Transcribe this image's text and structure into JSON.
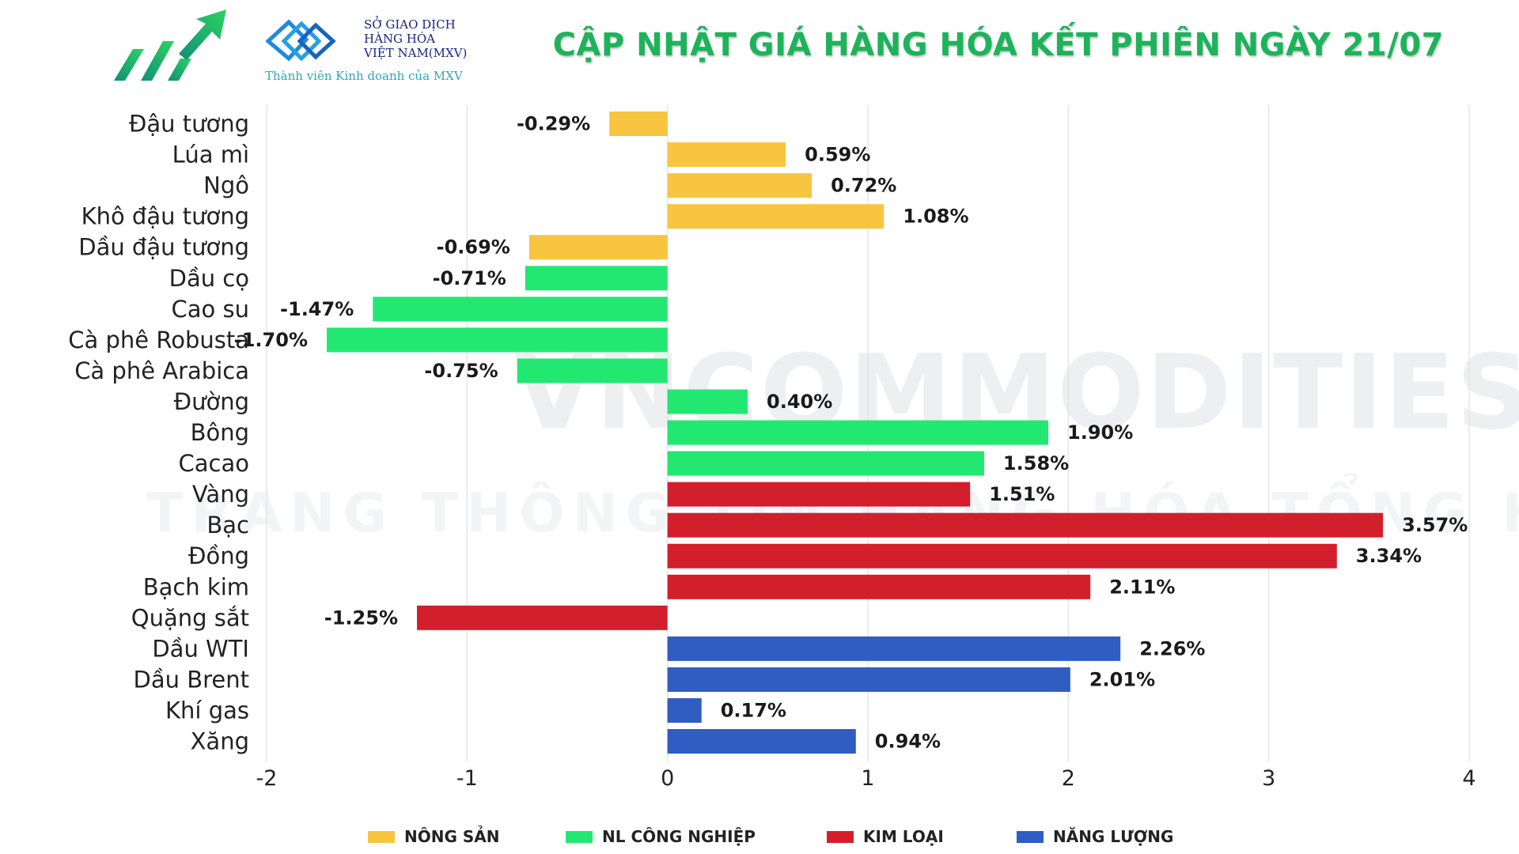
{
  "header": {
    "title": "CẬP NHẬT GIÁ HÀNG HÓA KẾT PHIÊN NGÀY 21/07",
    "mxv_line1": "SỞ GIAO DỊCH",
    "mxv_line2": "HÀNG HÓA",
    "mxv_line3": "VIỆT NAM(MXV)",
    "mxv_member": "Thành viên Kinh doanh của MXV"
  },
  "watermark": {
    "line1": "VNCOMMODITIES",
    "line2": "TRANG THÔNG TIN HÀNG HÓA TỔNG HỢP"
  },
  "colors": {
    "nong_san": "#f8c540",
    "nl_cong_nghiep": "#22e872",
    "kim_loai": "#d31f2b",
    "nang_luong": "#2f5dc1",
    "title": "#1db35b"
  },
  "chart_data": {
    "type": "bar",
    "orientation": "horizontal",
    "xlim": [
      -2,
      4
    ],
    "xticks": [
      "-2",
      "-1",
      "0",
      "1",
      "2",
      "3",
      "4"
    ],
    "grid": "vertical",
    "legend": "bottom",
    "legend_entries": [
      {
        "name": "NÔNG SẢN",
        "group": "nong_san"
      },
      {
        "name": "NL CÔNG NGHIỆP",
        "group": "nl_cong_nghiep"
      },
      {
        "name": "KIM LOẠI",
        "group": "kim_loai"
      },
      {
        "name": "NĂNG LƯỢNG",
        "group": "nang_luong"
      }
    ],
    "categories": [
      {
        "name": "Đậu tương",
        "value": -0.29,
        "label": "-0.29%",
        "group": "nong_san"
      },
      {
        "name": "Lúa mì",
        "value": 0.59,
        "label": "0.59%",
        "group": "nong_san"
      },
      {
        "name": "Ngô",
        "value": 0.72,
        "label": "0.72%",
        "group": "nong_san"
      },
      {
        "name": "Khô đậu tương",
        "value": 1.08,
        "label": "1.08%",
        "group": "nong_san"
      },
      {
        "name": "Dầu đậu tương",
        "value": -0.69,
        "label": "-0.69%",
        "group": "nong_san"
      },
      {
        "name": "Dầu cọ",
        "value": -0.71,
        "label": "-0.71%",
        "group": "nl_cong_nghiep"
      },
      {
        "name": "Cao su",
        "value": -1.47,
        "label": "-1.47%",
        "group": "nl_cong_nghiep"
      },
      {
        "name": "Cà phê Robusta",
        "value": -1.7,
        "label": "-1.70%",
        "group": "nl_cong_nghiep"
      },
      {
        "name": "Cà phê Arabica",
        "value": -0.75,
        "label": "-0.75%",
        "group": "nl_cong_nghiep"
      },
      {
        "name": "Đường",
        "value": 0.4,
        "label": "0.40%",
        "group": "nl_cong_nghiep"
      },
      {
        "name": "Bông",
        "value": 1.9,
        "label": "1.90%",
        "group": "nl_cong_nghiep"
      },
      {
        "name": "Cacao",
        "value": 1.58,
        "label": "1.58%",
        "group": "nl_cong_nghiep"
      },
      {
        "name": "Vàng",
        "value": 1.51,
        "label": "1.51%",
        "group": "kim_loai"
      },
      {
        "name": "Bạc",
        "value": 3.57,
        "label": "3.57%",
        "group": "kim_loai"
      },
      {
        "name": "Đồng",
        "value": 3.34,
        "label": "3.34%",
        "group": "kim_loai"
      },
      {
        "name": "Bạch kim",
        "value": 2.11,
        "label": "2.11%",
        "group": "kim_loai"
      },
      {
        "name": "Quặng sắt",
        "value": -1.25,
        "label": "-1.25%",
        "group": "kim_loai"
      },
      {
        "name": "Dầu WTI",
        "value": 2.26,
        "label": "2.26%",
        "group": "nang_luong"
      },
      {
        "name": "Dầu Brent",
        "value": 2.01,
        "label": "2.01%",
        "group": "nang_luong"
      },
      {
        "name": "Khí gas",
        "value": 0.17,
        "label": "0.17%",
        "group": "nang_luong"
      },
      {
        "name": "Xăng",
        "value": 0.94,
        "label": "0.94%",
        "group": "nang_luong"
      }
    ]
  }
}
